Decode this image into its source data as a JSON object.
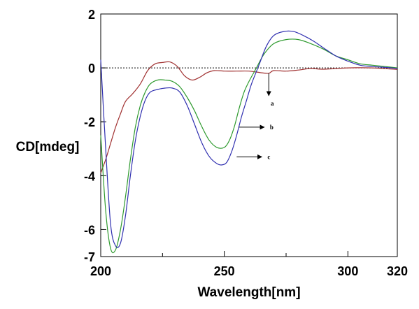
{
  "chart_data": {
    "type": "line",
    "title": "",
    "xlabel": "Wavelength[nm]",
    "ylabel": "CD[mdeg]",
    "xlim": [
      200,
      320
    ],
    "ylim": [
      -7,
      2
    ],
    "x_ticks": [
      200,
      250,
      300,
      320
    ],
    "y_ticks": [
      2,
      0,
      -2,
      -4,
      -6,
      -7
    ],
    "zero_line": "dotted",
    "series": [
      {
        "name": "a",
        "color": "#a03030",
        "x": [
          200,
          202,
          204,
          206,
          208,
          210,
          213,
          216,
          219,
          222,
          225,
          228,
          231,
          234,
          237,
          240,
          243,
          246,
          250,
          255,
          260,
          265,
          268,
          270,
          275,
          280,
          285,
          290,
          300,
          310,
          320
        ],
        "y": [
          -3.9,
          -3.4,
          -2.8,
          -2.2,
          -1.7,
          -1.25,
          -0.95,
          -0.6,
          -0.1,
          0.15,
          0.2,
          0.22,
          0.05,
          -0.3,
          -0.45,
          -0.35,
          -0.18,
          -0.1,
          -0.12,
          -0.12,
          -0.12,
          -0.18,
          -0.2,
          -0.1,
          -0.12,
          -0.08,
          -0.02,
          -0.05,
          0.0,
          0.0,
          -0.06
        ]
      },
      {
        "name": "b",
        "color": "#2e9a2e",
        "x": [
          200,
          202,
          204,
          206,
          208,
          210,
          212,
          214,
          216,
          218,
          220,
          223,
          226,
          229,
          232,
          235,
          238,
          241,
          244,
          247,
          250,
          252,
          254,
          256,
          258,
          260,
          263,
          266,
          270,
          275,
          280,
          285,
          290,
          295,
          300,
          305,
          310,
          315,
          320
        ],
        "y": [
          -2.5,
          -5.3,
          -6.7,
          -6.75,
          -6.0,
          -4.8,
          -3.4,
          -2.2,
          -1.4,
          -0.9,
          -0.6,
          -0.45,
          -0.45,
          -0.5,
          -0.7,
          -1.1,
          -1.6,
          -2.2,
          -2.7,
          -2.95,
          -2.95,
          -2.7,
          -2.2,
          -1.5,
          -0.9,
          -0.5,
          0.0,
          0.5,
          0.9,
          1.05,
          1.05,
          0.9,
          0.7,
          0.45,
          0.3,
          0.15,
          0.1,
          0.05,
          0.0
        ]
      },
      {
        "name": "c",
        "color": "#3030b0",
        "x": [
          200,
          202,
          204,
          206,
          208,
          210,
          212,
          214,
          216,
          218,
          220,
          223,
          226,
          229,
          232,
          235,
          238,
          241,
          244,
          247,
          249,
          251,
          253,
          255,
          257,
          259,
          261,
          264,
          267,
          270,
          274,
          278,
          282,
          286,
          290,
          295,
          300,
          305,
          310,
          315,
          320
        ],
        "y": [
          0.3,
          -3.0,
          -5.8,
          -6.6,
          -6.5,
          -5.5,
          -4.0,
          -2.7,
          -1.8,
          -1.2,
          -0.9,
          -0.8,
          -0.75,
          -0.75,
          -0.9,
          -1.4,
          -2.1,
          -2.8,
          -3.3,
          -3.55,
          -3.6,
          -3.5,
          -3.1,
          -2.5,
          -1.8,
          -1.2,
          -0.6,
          0.1,
          0.8,
          1.2,
          1.35,
          1.35,
          1.2,
          1.0,
          0.75,
          0.45,
          0.25,
          0.1,
          0.05,
          0.02,
          -0.02
        ]
      }
    ],
    "callouts": [
      {
        "label": "a",
        "target": [
          268,
          -0.2
        ],
        "direction": "down"
      },
      {
        "label": "b",
        "target": [
          256,
          -2.2
        ],
        "direction": "right"
      },
      {
        "label": "c",
        "target": [
          255,
          -3.3
        ],
        "direction": "right"
      }
    ]
  }
}
